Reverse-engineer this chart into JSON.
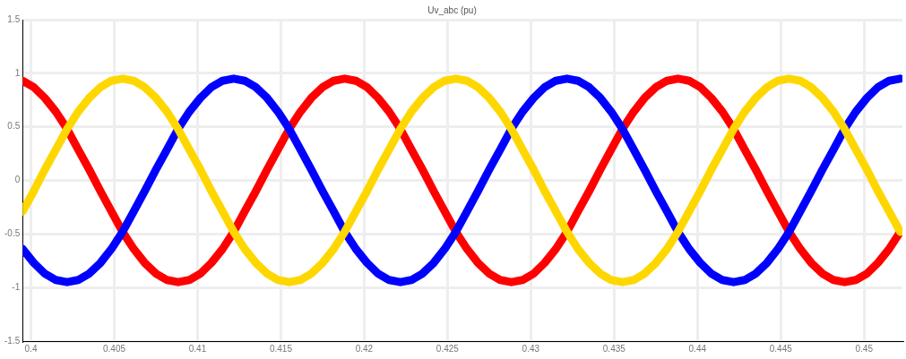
{
  "chart_data": {
    "type": "line",
    "title": "Uv_abc (pu)",
    "x": [
      0.3995,
      0.40017,
      0.40083,
      0.4015,
      0.40217,
      0.40283,
      0.4035,
      0.40417,
      0.40483,
      0.4055,
      0.40617,
      0.40683,
      0.4075,
      0.40817,
      0.40883,
      0.4095,
      0.41017,
      0.41083,
      0.4115,
      0.41217,
      0.41283,
      0.4135,
      0.41417,
      0.41483,
      0.4155,
      0.41617,
      0.41683,
      0.4175,
      0.41817,
      0.41883,
      0.4195,
      0.42017,
      0.42083,
      0.4215,
      0.42217,
      0.42283,
      0.4235,
      0.42417,
      0.42483,
      0.4255,
      0.42617,
      0.42683,
      0.4275,
      0.42817,
      0.42883,
      0.4295,
      0.43017,
      0.43083,
      0.4315,
      0.43217,
      0.43283,
      0.4335,
      0.43417,
      0.43483,
      0.4355,
      0.43617,
      0.43683,
      0.4375,
      0.43817,
      0.43883,
      0.4395,
      0.44017,
      0.44083,
      0.4415,
      0.44217,
      0.44283,
      0.4435,
      0.44417,
      0.44483,
      0.4455,
      0.44617,
      0.44683,
      0.4475,
      0.44817,
      0.44883,
      0.4495,
      0.45017,
      0.45083,
      0.4515,
      0.45217
    ],
    "series": [
      {
        "color": "#ffd700",
        "values": [
          -0.29,
          -0.1,
          0.1,
          0.29,
          0.48,
          0.64,
          0.77,
          0.87,
          0.93,
          0.95,
          0.93,
          0.87,
          0.77,
          0.64,
          0.48,
          0.29,
          0.1,
          -0.1,
          -0.29,
          -0.48,
          -0.64,
          -0.77,
          -0.87,
          -0.93,
          -0.95,
          -0.93,
          -0.87,
          -0.77,
          -0.64,
          -0.48,
          -0.29,
          -0.1,
          0.1,
          0.29,
          0.48,
          0.64,
          0.77,
          0.87,
          0.93,
          0.95,
          0.93,
          0.87,
          0.77,
          0.64,
          0.48,
          0.29,
          0.1,
          -0.1,
          -0.29,
          -0.48,
          -0.64,
          -0.77,
          -0.87,
          -0.93,
          -0.95,
          -0.93,
          -0.87,
          -0.77,
          -0.64,
          -0.48,
          -0.29,
          -0.1,
          0.1,
          0.29,
          0.48,
          0.64,
          0.77,
          0.87,
          0.93,
          0.95,
          0.93,
          0.87,
          0.77,
          0.64,
          0.48,
          0.29,
          0.1,
          -0.1,
          -0.29,
          -0.48
        ]
      },
      {
        "color": "#0000ff",
        "values": [
          -0.64,
          -0.77,
          -0.87,
          -0.93,
          -0.95,
          -0.93,
          -0.87,
          -0.77,
          -0.64,
          -0.48,
          -0.29,
          -0.1,
          0.1,
          0.29,
          0.48,
          0.64,
          0.77,
          0.87,
          0.93,
          0.95,
          0.93,
          0.87,
          0.77,
          0.64,
          0.48,
          0.29,
          0.1,
          -0.1,
          -0.29,
          -0.48,
          -0.64,
          -0.77,
          -0.87,
          -0.93,
          -0.95,
          -0.93,
          -0.87,
          -0.77,
          -0.64,
          -0.48,
          -0.29,
          -0.1,
          0.1,
          0.29,
          0.48,
          0.64,
          0.77,
          0.87,
          0.93,
          0.95,
          0.93,
          0.87,
          0.77,
          0.64,
          0.48,
          0.29,
          0.1,
          -0.1,
          -0.29,
          -0.48,
          -0.64,
          -0.77,
          -0.87,
          -0.93,
          -0.95,
          -0.93,
          -0.87,
          -0.77,
          -0.64,
          -0.48,
          -0.29,
          -0.1,
          0.1,
          0.29,
          0.48,
          0.64,
          0.77,
          0.87,
          0.93,
          0.95
        ]
      },
      {
        "color": "#ff0000",
        "values": [
          0.93,
          0.87,
          0.77,
          0.64,
          0.48,
          0.29,
          0.1,
          -0.1,
          -0.29,
          -0.48,
          -0.64,
          -0.77,
          -0.87,
          -0.93,
          -0.95,
          -0.93,
          -0.87,
          -0.77,
          -0.64,
          -0.48,
          -0.29,
          -0.1,
          0.1,
          0.29,
          0.48,
          0.64,
          0.77,
          0.87,
          0.93,
          0.95,
          0.93,
          0.87,
          0.77,
          0.64,
          0.48,
          0.29,
          0.1,
          -0.1,
          -0.29,
          -0.48,
          -0.64,
          -0.77,
          -0.87,
          -0.93,
          -0.95,
          -0.93,
          -0.87,
          -0.77,
          -0.64,
          -0.48,
          -0.29,
          -0.1,
          0.1,
          0.29,
          0.48,
          0.64,
          0.77,
          0.87,
          0.93,
          0.95,
          0.93,
          0.87,
          0.77,
          0.64,
          0.48,
          0.29,
          0.1,
          -0.1,
          -0.29,
          -0.48,
          -0.64,
          -0.77,
          -0.87,
          -0.93,
          -0.95,
          -0.93,
          -0.87,
          -0.77,
          -0.64,
          -0.48
        ]
      }
    ],
    "xlim": [
      0.3995,
      0.4523
    ],
    "xticks": [
      0.4,
      0.405,
      0.41,
      0.415,
      0.42,
      0.425,
      0.43,
      0.435,
      0.44,
      0.445,
      0.45
    ],
    "ylim": [
      -1.5,
      1.5
    ],
    "yticks": [
      -1.5,
      -1,
      -0.5,
      0,
      0.5,
      1,
      1.5
    ],
    "grid": true,
    "legend": false,
    "marker": "none",
    "line_style": "solid"
  }
}
